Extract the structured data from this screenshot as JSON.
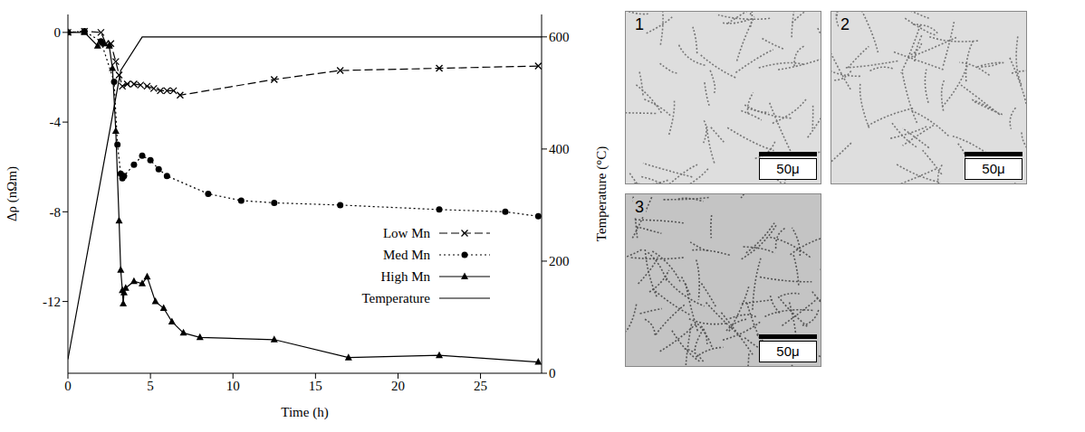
{
  "chart_data": {
    "type": "line",
    "xlabel": "Time (h)",
    "ylabel": "Δρ (nΩm)",
    "y2label": "Temperature (°C)",
    "xlim": [
      0,
      28.7
    ],
    "xticks": [
      0,
      5,
      10,
      15,
      20,
      25
    ],
    "ylim": [
      -15.2,
      0.8
    ],
    "yticks": [
      0,
      -4,
      -8,
      -12
    ],
    "y2lim": [
      0,
      640
    ],
    "y2ticks": [
      0,
      200,
      400,
      600
    ],
    "legend": "lower right",
    "grid": false,
    "series": [
      {
        "name": "Low Mn",
        "color": "#000000",
        "marker": "x",
        "line_style": "dashed",
        "x": [
          0,
          1,
          2,
          2.3,
          2.6,
          2.9,
          3.1,
          3.3,
          3.6,
          4,
          4.4,
          4.8,
          5.2,
          5.6,
          6,
          6.4,
          6.8,
          12.5,
          16.5,
          22.5,
          28.5
        ],
        "values": [
          0,
          0.05,
          0,
          -0.5,
          -0.5,
          -1.3,
          -1.9,
          -2.4,
          -2.3,
          -2.3,
          -2.35,
          -2.4,
          -2.5,
          -2.6,
          -2.6,
          -2.6,
          -2.8,
          -2.1,
          -1.7,
          -1.6,
          -1.5
        ]
      },
      {
        "name": "Med Mn",
        "color": "#000000",
        "marker": "circle",
        "line_style": "dotted",
        "x": [
          0,
          1,
          2,
          2.8,
          3.0,
          3.2,
          3.3,
          3.4,
          4,
          4.5,
          5,
          5.5,
          6,
          8.5,
          10.5,
          12.5,
          16.5,
          22.5,
          26.5,
          28.5
        ],
        "values": [
          0,
          0.05,
          -0.4,
          -2.2,
          -5.0,
          -6.3,
          -6.5,
          -6.4,
          -5.9,
          -5.5,
          -5.7,
          -6.1,
          -6.4,
          -7.2,
          -7.5,
          -7.6,
          -7.7,
          -7.9,
          -8.0,
          -8.2
        ]
      },
      {
        "name": "High Mn",
        "color": "#000000",
        "marker": "triangle",
        "line_style": "solid",
        "x": [
          0,
          1,
          1.8,
          2.2,
          2.5,
          2.7,
          2.9,
          3.1,
          3.2,
          3.3,
          3.35,
          3.4,
          3.5,
          4,
          4.5,
          4.8,
          5.3,
          5.8,
          6.3,
          7,
          8,
          12.5,
          17,
          22.5,
          28.5
        ],
        "values": [
          0,
          0,
          -0.6,
          -0.5,
          -0.6,
          -1.6,
          -4.4,
          -8.4,
          -10.6,
          -11.5,
          -12.1,
          -11.6,
          -11.4,
          -11.1,
          -11.2,
          -10.9,
          -12.0,
          -12.3,
          -12.9,
          -13.4,
          -13.6,
          -13.7,
          -14.5,
          -14.4,
          -14.7
        ]
      },
      {
        "name": "Temperature",
        "color": "#000000",
        "marker": "none",
        "line_style": "solid",
        "axis": "y2",
        "x": [
          0,
          3.2,
          4.5,
          28.7
        ],
        "values": [
          25,
          540,
          600,
          600
        ]
      }
    ]
  },
  "micrographs": [
    {
      "label": "1",
      "scale_bar": "50μ"
    },
    {
      "label": "2",
      "scale_bar": "50μ"
    },
    {
      "label": "3",
      "scale_bar": "50μ"
    }
  ]
}
